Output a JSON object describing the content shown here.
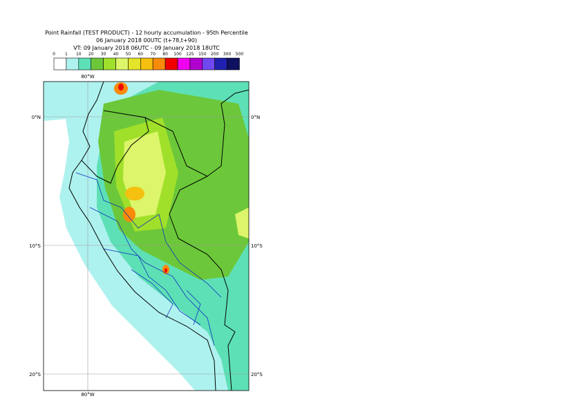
{
  "title": [
    "Point Rainfall (TEST PRODUCT) - 12 hourly accumulation - 95th Percentile",
    "06 January 2018 00UTC (t+78,t+90)",
    "VT: 09 January 2018 06UTC - 09 January 2018 18UTC"
  ],
  "legend": {
    "labels": [
      "0",
      "1",
      "10",
      "20",
      "30",
      "40",
      "50",
      "60",
      "70",
      "80",
      "100",
      "125",
      "150",
      "200",
      "300",
      "500"
    ],
    "colors": [
      "#ffffff",
      "#aef2ef",
      "#5ee0b6",
      "#6cc83a",
      "#a0e02a",
      "#dcf56a",
      "#e4e42a",
      "#f5c010",
      "#fa8a0a",
      "#f00000",
      "#f000f0",
      "#b000d0",
      "#7048f0",
      "#2020b0",
      "#101060"
    ]
  },
  "map": {
    "lon_labels": [
      "80°W"
    ],
    "lat_labels": [
      "0°N",
      "10°S",
      "20°S"
    ]
  }
}
